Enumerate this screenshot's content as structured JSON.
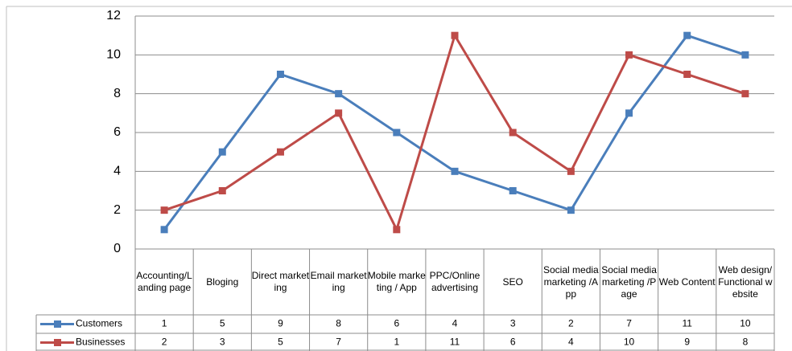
{
  "chart_data": {
    "type": "line",
    "categories": [
      "Accounting/Landing page",
      "Bloging",
      "Direct marketing",
      "Email marketing",
      "Mobile marketing / App",
      "PPC/Online advertising",
      "SEO",
      "Social media marketing /App",
      "Social media marketing /Page",
      "Web Content",
      "Web design/Functional website"
    ],
    "series": [
      {
        "name": "Customers",
        "color": "#4a7ebb",
        "values": [
          1,
          5,
          9,
          8,
          6,
          4,
          3,
          2,
          7,
          11,
          10
        ]
      },
      {
        "name": "Businesses",
        "color": "#be4b48",
        "values": [
          2,
          3,
          5,
          7,
          1,
          11,
          6,
          4,
          10,
          9,
          8
        ]
      }
    ],
    "ylim": [
      0,
      12
    ],
    "yticks": [
      0,
      2,
      4,
      6,
      8,
      10,
      12
    ],
    "grid": true,
    "data_table": true
  }
}
